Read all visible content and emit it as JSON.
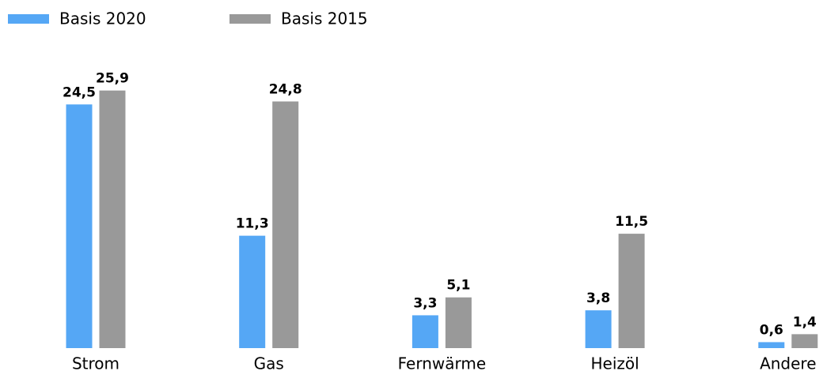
{
  "chart_data": {
    "type": "bar",
    "categories": [
      "Strom",
      "Gas",
      "Fernwärme",
      "Heizöl",
      "Andere"
    ],
    "series": [
      {
        "name": "Basis 2020",
        "color": "#55a7f5",
        "values": [
          24.5,
          11.3,
          3.3,
          3.8,
          0.6
        ],
        "value_labels": [
          "24,5",
          "11,3",
          "3,3",
          "3,8",
          "0,6"
        ]
      },
      {
        "name": "Basis 2015",
        "color": "#999999",
        "values": [
          25.9,
          24.8,
          5.1,
          11.5,
          1.4
        ],
        "value_labels": [
          "25,9",
          "24,8",
          "5,1",
          "11,5",
          "1,4"
        ]
      }
    ]
  }
}
